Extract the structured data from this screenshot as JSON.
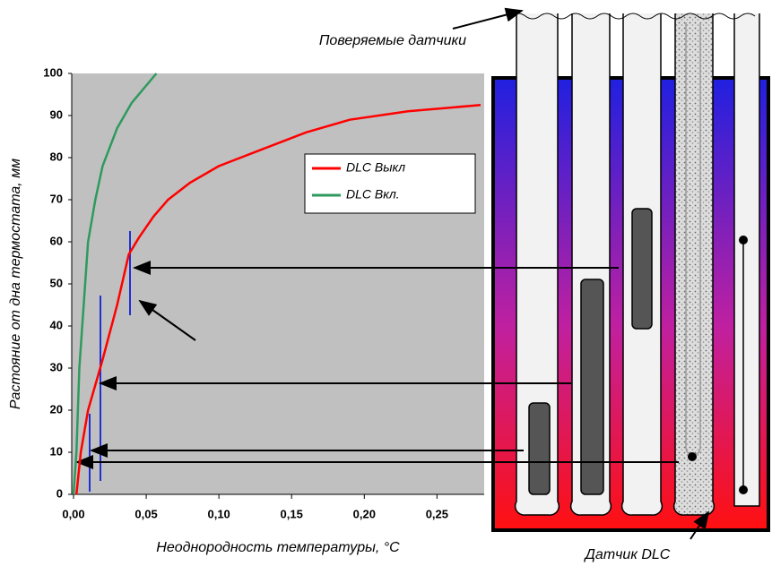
{
  "chart_data": {
    "type": "line",
    "xlabel": "Неоднородность температуры, °C",
    "ylabel": "Растояние от дна термостата, мм",
    "xlim": [
      0,
      0.28
    ],
    "ylim": [
      0,
      100
    ],
    "xticks": [
      {
        "value": 0,
        "label": "0,00"
      },
      {
        "value": 0.05,
        "label": "0,05"
      },
      {
        "value": 0.1,
        "label": "0,10"
      },
      {
        "value": 0.15,
        "label": "0,15"
      },
      {
        "value": 0.2,
        "label": "0,20"
      },
      {
        "value": 0.25,
        "label": "0,25"
      }
    ],
    "yticks": [
      0,
      10,
      20,
      30,
      40,
      50,
      60,
      70,
      80,
      90,
      100
    ],
    "series": [
      {
        "name": "DLC Выкл",
        "color": "#ff0000",
        "x": [
          0.002,
          0.005,
          0.01,
          0.02,
          0.03,
          0.038,
          0.045,
          0.055,
          0.065,
          0.08,
          0.1,
          0.13,
          0.16,
          0.19,
          0.23,
          0.28
        ],
        "values": [
          0,
          10,
          20,
          32,
          45,
          57,
          61,
          66,
          70,
          74,
          78,
          82,
          86,
          89,
          91,
          92.5
        ]
      },
      {
        "name": "DLC Вкл.",
        "color": "#2e9a5e",
        "x": [
          0,
          0.002,
          0.004,
          0.007,
          0.01,
          0.015,
          0.02,
          0.03,
          0.04,
          0.057
        ],
        "values": [
          0,
          10,
          30,
          45,
          60,
          70,
          78,
          87,
          93,
          100
        ]
      }
    ],
    "annotations": [
      "Поверяемые датчики",
      "Датчик DLC"
    ]
  }
}
